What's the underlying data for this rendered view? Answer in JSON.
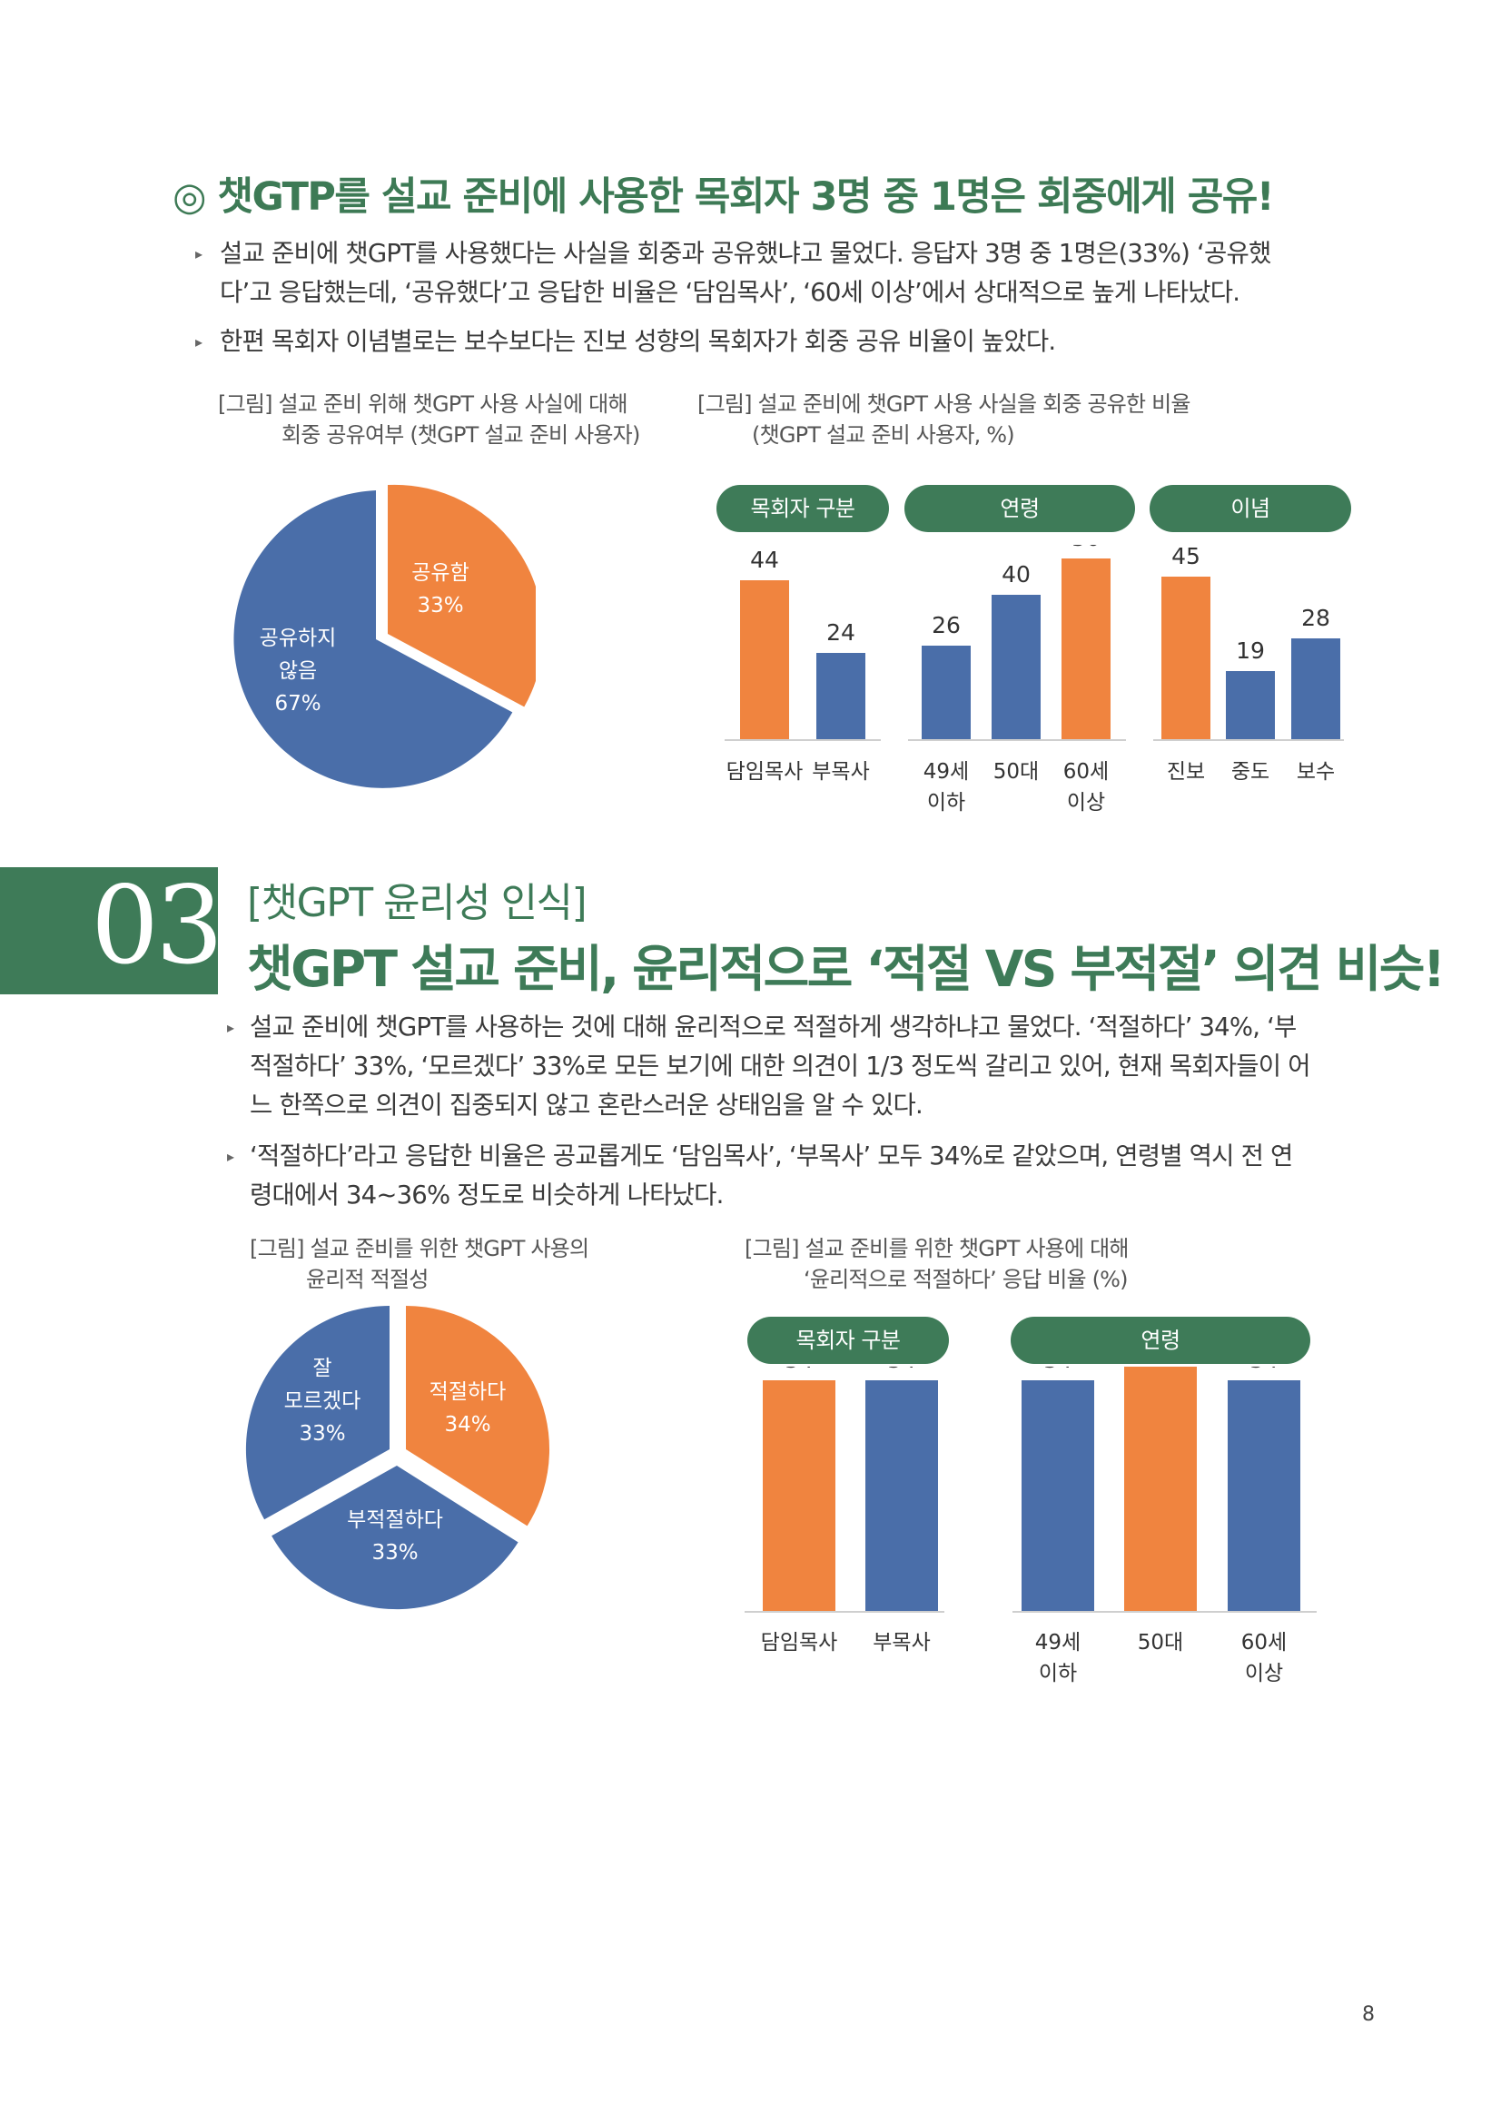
{
  "section1": {
    "heading": "◎ 챗GTP를 설교 준비에 사용한 목회자 3명 중 1명은 회중에게 공유!",
    "bullets": [
      {
        "lines": [
          "설교 준비에 챗GPT를 사용했다는 사실을 회중과 공유했냐고 물었다. 응답자 3명 중 1명은(33%) ‘공유했",
          "다’고 응답했는데, ‘공유했다’고 응답한 비율은 ‘담임목사’, ‘60세 이상’에서 상대적으로 높게 나타났다."
        ]
      },
      {
        "lines": [
          "한편 목회자 이념별로는 보수보다는 진보 성향의 목회자가 회중 공유 비율이 높았다."
        ]
      }
    ],
    "pie_caption": [
      "[그림] 설교 준비 위해 챗GPT 사용 사실에 대해",
      "회중 공유여부 (챗GPT 설교 준비 사용자)"
    ],
    "bar_caption": [
      "[그림] 설교 준비에 챗GPT 사용 사실을 회중 공유한 비율",
      "(챗GPT 설교 준비 사용자, %)"
    ],
    "groups": [
      "목회자 구분",
      "연령",
      "이념"
    ]
  },
  "section2": {
    "number": "03",
    "subtitle": "[챗GPT 윤리성 인식]",
    "title": "챗GPT 설교 준비, 윤리적으로 ‘적절 VS 부적절’ 의견 비슷!",
    "bullets": [
      {
        "lines": [
          "설교 준비에 챗GPT를 사용하는 것에 대해 윤리적으로 적절하게 생각하냐고 물었다. ‘적절하다’ 34%, ‘부",
          "적절하다’ 33%, ‘모르겠다’ 33%로 모든 보기에 대한 의견이 1/3 정도씩 갈리고 있어, 현재 목회자들이 어",
          "느 한쪽으로 의견이 집중되지 않고 혼란스러운 상태임을 알 수 있다."
        ]
      },
      {
        "lines": [
          "‘적절하다’라고 응답한 비율은 공교롭게도 ‘담임목사’, ‘부목사’ 모두 34%로 같았으며, 연령별 역시 전 연",
          "령대에서 34~36% 정도로 비슷하게 나타났다."
        ]
      }
    ],
    "pie_caption": [
      "[그림] 설교 준비를 위한 챗GPT 사용의",
      "윤리적 적절성"
    ],
    "bar_caption": [
      "[그림] 설교 준비를 위한 챗GPT 사용에 대해",
      "‘윤리적으로 적절하다’ 응답 비율 (%)"
    ],
    "groups": [
      "목회자 구분",
      "연령"
    ]
  },
  "page_number": "8",
  "chart_data": [
    {
      "type": "pie",
      "slices": [
        {
          "label": "공유함",
          "value": 33,
          "value_label": "33%",
          "color": "#f0843f"
        },
        {
          "label": "공유하지 않음",
          "value": 67,
          "value_label": "67%",
          "color": "#4a6ea9"
        }
      ]
    },
    {
      "type": "bar",
      "ylim": [
        0,
        60
      ],
      "groups": [
        "목회자 구분",
        "연령",
        "이념"
      ],
      "bars": [
        {
          "category": "담임목사",
          "value": 44,
          "color": "#f0843f",
          "group": 0
        },
        {
          "category": "부목사",
          "value": 24,
          "color": "#4a6ea9",
          "group": 0
        },
        {
          "category": "49세 이하",
          "value": 26,
          "color": "#4a6ea9",
          "group": 1
        },
        {
          "category": "50대",
          "value": 40,
          "color": "#4a6ea9",
          "group": 1
        },
        {
          "category": "60세 이상",
          "value": 50,
          "color": "#f0843f",
          "group": 1
        },
        {
          "category": "진보",
          "value": 45,
          "color": "#f0843f",
          "group": 2
        },
        {
          "category": "중도",
          "value": 19,
          "color": "#4a6ea9",
          "group": 2
        },
        {
          "category": "보수",
          "value": 28,
          "color": "#4a6ea9",
          "group": 2
        }
      ]
    },
    {
      "type": "pie",
      "slices": [
        {
          "label": "적절하다",
          "value": 34,
          "value_label": "34%",
          "color": "#f0843f"
        },
        {
          "label": "부적절하다",
          "value": 33,
          "value_label": "33%",
          "color": "#4a6ea9"
        },
        {
          "label": "잘 모르겠다",
          "value": 33,
          "value_label": "33%",
          "color": "#4a6ea9"
        }
      ]
    },
    {
      "type": "bar",
      "ylim": [
        0,
        40
      ],
      "groups": [
        "목회자 구분",
        "연령"
      ],
      "bars": [
        {
          "category": "담임목사",
          "value": 34,
          "color": "#f0843f",
          "group": 0
        },
        {
          "category": "부목사",
          "value": 34,
          "color": "#4a6ea9",
          "group": 0
        },
        {
          "category": "49세 이하",
          "value": 34,
          "color": "#4a6ea9",
          "group": 1
        },
        {
          "category": "50대",
          "value": 36,
          "color": "#f0843f",
          "group": 1
        },
        {
          "category": "60세 이상",
          "value": 34,
          "color": "#4a6ea9",
          "group": 1
        }
      ]
    }
  ]
}
